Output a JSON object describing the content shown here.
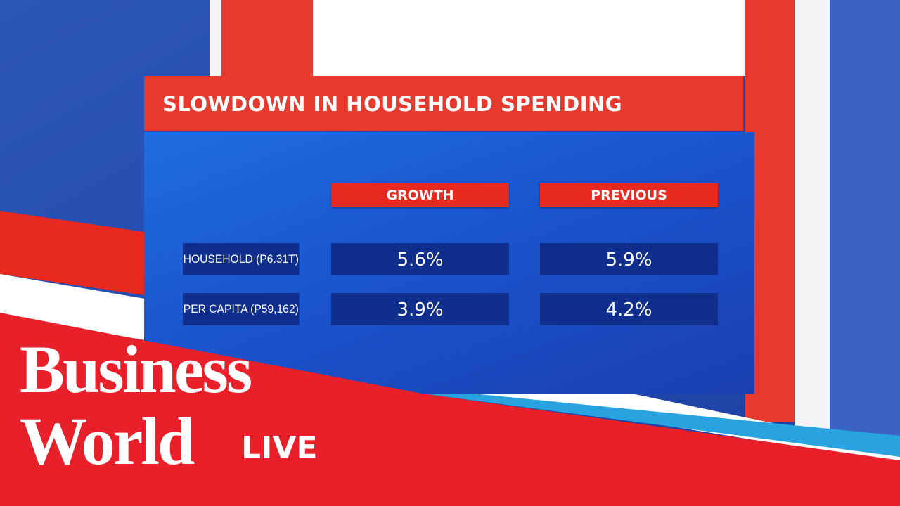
{
  "header": {
    "title": "SLOWDOWN IN HOUSEHOLD SPENDING"
  },
  "table": {
    "columns": [
      "GROWTH",
      "PREVIOUS"
    ],
    "rows": [
      [
        "HOUSEHOLD (P6.31T)",
        "5.6%",
        "5.9%"
      ],
      [
        "PER CAPITA (P59,162)",
        "3.9%",
        "4.2%"
      ]
    ]
  },
  "logo": {
    "line1": "Business",
    "line2": "World",
    "badge": "LIVE"
  }
}
